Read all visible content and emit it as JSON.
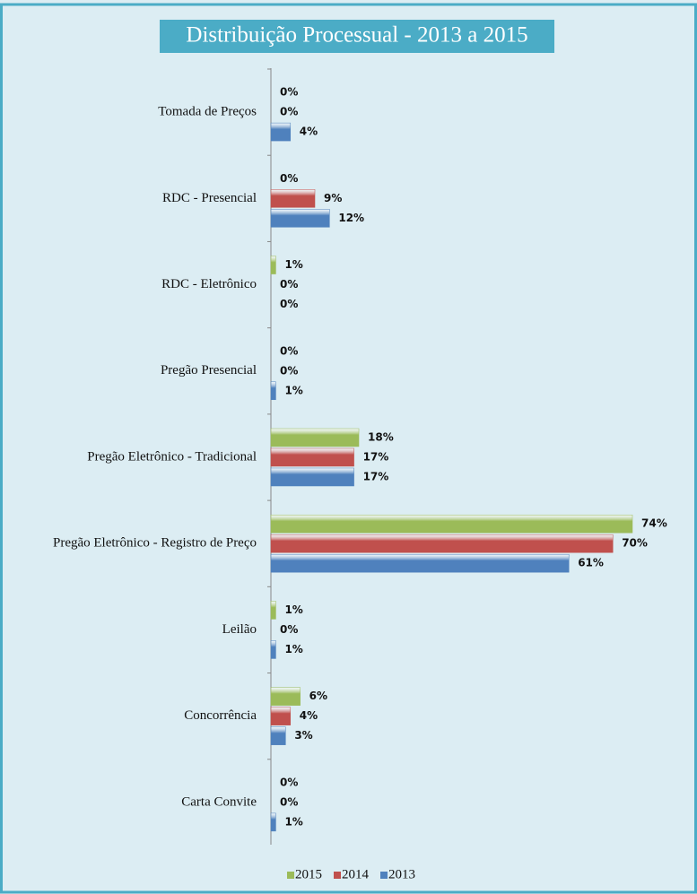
{
  "chart_data": {
    "type": "bar",
    "orientation": "horizontal",
    "title": "Distribuição Processual - 2013 a 2015",
    "categories": [
      "Tomada de Preços",
      "RDC - Presencial",
      "RDC - Eletrônico",
      "Pregão Presencial",
      "Pregão Eletrônico - Tradicional",
      "Pregão Eletrônico - Registro de Preço",
      "Leilão",
      "Concorrência",
      "Carta Convite"
    ],
    "series": [
      {
        "name": "2015",
        "color": "#9bbb59",
        "values": [
          0,
          0,
          1,
          0,
          18,
          74,
          1,
          6,
          0
        ],
        "value_labels": [
          "0%",
          "0%",
          "1%",
          "0%",
          "18%",
          "74%",
          "1%",
          "6%",
          "0%"
        ]
      },
      {
        "name": "2014",
        "color": "#c0504d",
        "values": [
          0,
          9,
          0,
          0,
          17,
          70,
          0,
          4,
          0
        ],
        "value_labels": [
          "0%",
          "9%",
          "0%",
          "0%",
          "17%",
          "70%",
          "0%",
          "4%",
          "0%"
        ]
      },
      {
        "name": "2013",
        "color": "#4f81bd",
        "values": [
          4,
          12,
          0,
          1,
          17,
          61,
          1,
          3,
          1
        ],
        "value_labels": [
          "4%",
          "12%",
          "0%",
          "1%",
          "17%",
          "61%",
          "1%",
          "3%",
          "1%"
        ]
      }
    ],
    "legend": "bottom"
  }
}
